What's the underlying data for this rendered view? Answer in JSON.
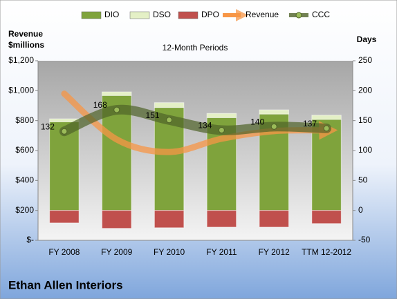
{
  "chart_data": {
    "type": "combo",
    "title": "Ethan Allen Interiors",
    "subtitle": "12-Month Periods",
    "y_label": [
      "Revenue",
      "$millions"
    ],
    "y2_label": "Days",
    "categories": [
      "FY 2008",
      "FY 2009",
      "FY 2010",
      "FY 2011",
      "FY 2012",
      "TTM 12-2012"
    ],
    "series": [
      {
        "name": "DIO",
        "type": "bar",
        "axis": "y2",
        "color": "#7fa33c",
        "values": [
          148,
          192,
          172,
          155,
          161,
          152
        ]
      },
      {
        "name": "DSO",
        "type": "bar",
        "axis": "y2",
        "color": "#e4f0c6",
        "values": [
          5,
          6,
          8,
          7,
          7,
          7
        ]
      },
      {
        "name": "DPO",
        "type": "bar",
        "axis": "y2",
        "color": "#c0504d",
        "values": [
          -21,
          -30,
          -29,
          -28,
          -28,
          -22
        ]
      },
      {
        "name": "Revenue",
        "type": "line",
        "axis": "y",
        "color": "#f79646",
        "values": [
          980,
          674,
          590,
          679,
          730,
          735
        ]
      },
      {
        "name": "CCC",
        "type": "line",
        "axis": "y2",
        "color": "#4f6228",
        "values": [
          132,
          168,
          151,
          134,
          140,
          137
        ]
      }
    ],
    "ylim": [
      0,
      1200
    ],
    "yticks": [
      {
        "value": 0,
        "label": "$-"
      },
      {
        "value": 200,
        "label": "$200"
      },
      {
        "value": 400,
        "label": "$400"
      },
      {
        "value": 600,
        "label": "$600"
      },
      {
        "value": 800,
        "label": "$800"
      },
      {
        "value": 1000,
        "label": "$1,000"
      },
      {
        "value": 1200,
        "label": "$1,200"
      }
    ],
    "y2lim": [
      -50,
      250
    ],
    "y2ticks": [
      -50,
      0,
      50,
      100,
      150,
      200,
      250
    ],
    "legend": "top"
  }
}
